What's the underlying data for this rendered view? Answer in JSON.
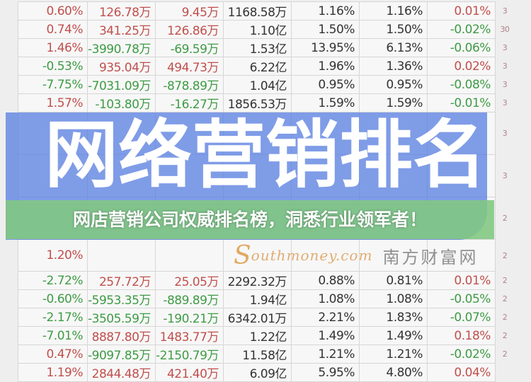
{
  "table": {
    "rows": [
      [
        "0.60%",
        "126.78万",
        "9.45万",
        "1168.58万",
        "1.16%",
        "1.16%",
        "0.01%",
        "3"
      ],
      [
        "0.74%",
        "341.25万",
        "126.86万",
        "1.10亿",
        "1.50%",
        "1.50%",
        "-0.02%",
        "30"
      ],
      [
        "1.46%",
        "-3990.78万",
        "-69.59万",
        "1.53亿",
        "13.95%",
        "6.13%",
        "-0.06%",
        "3"
      ],
      [
        "-0.53%",
        "935.04万",
        "494.73万",
        "6.22亿",
        "1.96%",
        "1.36%",
        "0.02%",
        "3"
      ],
      [
        "-7.75%",
        "-7031.09万",
        "-878.89万",
        "1.04亿",
        "0.95%",
        "0.95%",
        "-0.08%",
        "3"
      ],
      [
        "1.57%",
        "-103.80万",
        "-16.27万",
        "1856.53万",
        "1.59%",
        "1.59%",
        "-0.01%",
        "3"
      ],
      [
        "",
        "",
        "",
        "",
        "",
        "",
        "",
        "3"
      ],
      [
        "",
        "",
        "",
        "",
        "",
        "",
        "",
        "3"
      ],
      [
        "",
        "",
        "",
        "",
        "",
        "",
        "",
        "2"
      ],
      [
        "1.20%",
        "",
        "",
        "",
        "",
        "",
        "",
        "2"
      ],
      [
        "-2.72%",
        "257.72万",
        "25.05万",
        "2292.32万",
        "0.88%",
        "0.81%",
        "0.01%",
        "2"
      ],
      [
        "-0.60%",
        "-5953.35万",
        "-889.89万",
        "1.94亿",
        "1.08%",
        "1.08%",
        "-0.05%",
        "2"
      ],
      [
        "-2.17%",
        "-3505.59万",
        "-190.21万",
        "6342.01万",
        "2.21%",
        "1.83%",
        "-0.07%",
        "2"
      ],
      [
        "-7.01%",
        "8887.80万",
        "1483.77万",
        "1.22亿",
        "1.49%",
        "1.49%",
        "0.18%",
        "2"
      ],
      [
        "0.47%",
        "-9097.85万",
        "-2150.79万",
        "11.58亿",
        "1.21%",
        "1.21%",
        "-0.02%",
        "2"
      ],
      [
        "1.19%",
        "2844.48万",
        "421.40万",
        "6.09亿",
        "5.95%",
        "4.80%",
        "0.04%",
        ""
      ]
    ]
  },
  "watermark": {
    "cn": "南方财富网",
    "en": "outhmoney.com",
    "s": "S"
  },
  "banner": {
    "big_text": "网络营销排名",
    "caption": "网店营销公司权威排名榜，洞悉行业领军者！"
  },
  "colors": {
    "positive": "#c0504d",
    "negative": "#3f9b45",
    "banner": "#5078e1",
    "band": "#82c882"
  }
}
